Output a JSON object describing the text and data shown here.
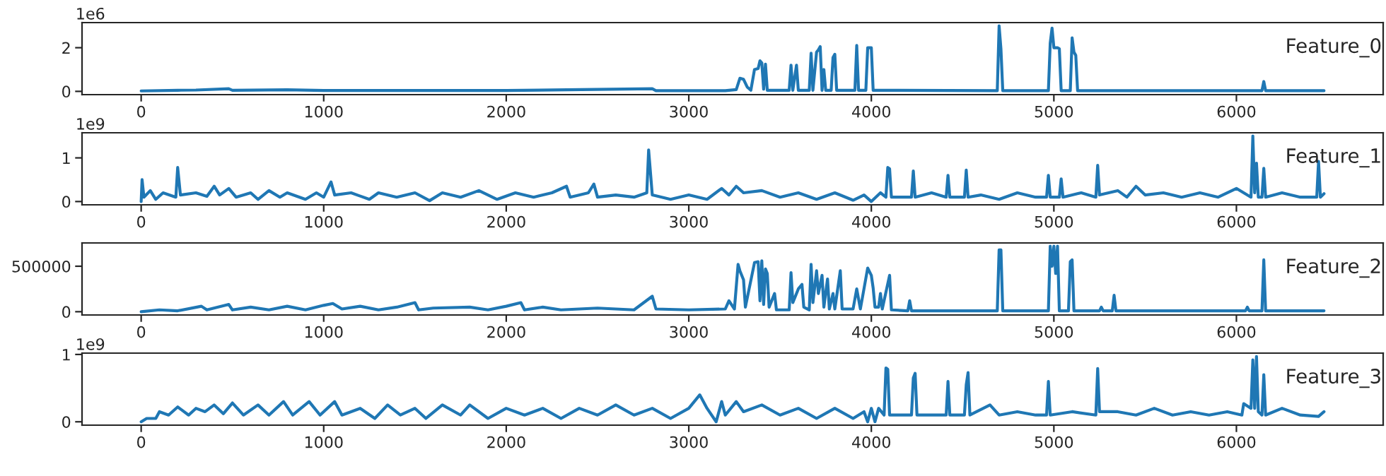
{
  "chart_data": [
    {
      "type": "line",
      "title": "Feature_0",
      "annotations": [
        "1e6"
      ],
      "xlim": [
        -324,
        6804
      ],
      "xticks": [
        0,
        1000,
        2000,
        3000,
        4000,
        5000,
        6000
      ],
      "ylim": [
        -0.15,
        3.15
      ],
      "yticks": [
        0,
        2
      ],
      "x": [
        0,
        200,
        300,
        480,
        500,
        800,
        1000,
        1500,
        2000,
        2800,
        2820,
        3200,
        3260,
        3280,
        3300,
        3320,
        3340,
        3360,
        3380,
        3390,
        3400,
        3410,
        3420,
        3430,
        3550,
        3560,
        3570,
        3590,
        3600,
        3660,
        3670,
        3680,
        3700,
        3710,
        3720,
        3730,
        3740,
        3750,
        3780,
        3790,
        3800,
        3810,
        3910,
        3920,
        3930,
        3970,
        3980,
        4000,
        4010,
        4690,
        4700,
        4710,
        4720,
        4970,
        4980,
        4990,
        5000,
        5020,
        5030,
        5040,
        5090,
        5100,
        5110,
        5120,
        5130,
        6140,
        6150,
        6160,
        6480
      ],
      "series": [
        {
          "color": "#1f77b4",
          "values": [
            0.02,
            0.05,
            0.06,
            0.12,
            0.05,
            0.07,
            0.04,
            0.04,
            0.04,
            0.12,
            0.03,
            0.03,
            0.08,
            0.6,
            0.55,
            0.2,
            0.05,
            1.0,
            1.05,
            1.4,
            1.3,
            0.1,
            1.25,
            0.05,
            0.05,
            1.2,
            0.05,
            1.2,
            0.05,
            0.05,
            1.75,
            0.05,
            1.8,
            1.9,
            2.05,
            0.05,
            1.0,
            0.05,
            0.05,
            1.55,
            1.7,
            0.05,
            0.05,
            2.1,
            0.05,
            0.05,
            2.0,
            2.0,
            0.05,
            0.03,
            3.0,
            1.95,
            0.03,
            0.03,
            2.2,
            2.9,
            2.0,
            2.0,
            1.95,
            0.03,
            0.03,
            2.45,
            1.8,
            1.65,
            0.03,
            0.03,
            0.45,
            0.03,
            0.03
          ]
        }
      ]
    },
    {
      "type": "line",
      "title": "Feature_1",
      "annotations": [
        "1e9"
      ],
      "xlim": [
        -324,
        6804
      ],
      "xticks": [
        0,
        1000,
        2000,
        3000,
        4000,
        5000,
        6000
      ],
      "ylim": [
        -0.075,
        1.575
      ],
      "yticks": [
        0,
        1
      ],
      "x": [
        0,
        5,
        15,
        50,
        80,
        120,
        190,
        200,
        215,
        300,
        360,
        400,
        430,
        480,
        520,
        600,
        640,
        700,
        760,
        800,
        900,
        960,
        1000,
        1040,
        1060,
        1150,
        1250,
        1300,
        1400,
        1500,
        1580,
        1650,
        1750,
        1850,
        1950,
        2050,
        2150,
        2250,
        2330,
        2350,
        2450,
        2480,
        2500,
        2600,
        2700,
        2770,
        2780,
        2800,
        2900,
        3000,
        3100,
        3180,
        3220,
        3260,
        3300,
        3400,
        3500,
        3600,
        3700,
        3800,
        3900,
        3960,
        4000,
        4050,
        4080,
        4090,
        4100,
        4110,
        4220,
        4230,
        4240,
        4330,
        4410,
        4420,
        4430,
        4510,
        4520,
        4530,
        4600,
        4700,
        4800,
        4900,
        4960,
        4970,
        4980,
        5030,
        5040,
        5050,
        5150,
        5230,
        5240,
        5250,
        5350,
        5400,
        5450,
        5500,
        5600,
        5700,
        5800,
        5900,
        6000,
        6080,
        6090,
        6100,
        6110,
        6120,
        6140,
        6150,
        6160,
        6250,
        6350,
        6440,
        6450,
        6460,
        6480
      ],
      "series": [
        {
          "color": "#1f77b4",
          "values": [
            0.0,
            0.5,
            0.1,
            0.25,
            0.05,
            0.2,
            0.1,
            0.78,
            0.15,
            0.2,
            0.12,
            0.35,
            0.15,
            0.3,
            0.1,
            0.2,
            0.05,
            0.25,
            0.1,
            0.2,
            0.05,
            0.2,
            0.1,
            0.45,
            0.15,
            0.2,
            0.05,
            0.2,
            0.1,
            0.2,
            0.02,
            0.2,
            0.1,
            0.25,
            0.05,
            0.2,
            0.1,
            0.2,
            0.35,
            0.1,
            0.2,
            0.4,
            0.1,
            0.15,
            0.1,
            0.2,
            1.18,
            0.15,
            0.05,
            0.15,
            0.05,
            0.3,
            0.15,
            0.35,
            0.2,
            0.25,
            0.1,
            0.2,
            0.05,
            0.2,
            0.03,
            0.15,
            0.0,
            0.2,
            0.1,
            0.78,
            0.75,
            0.1,
            0.1,
            0.7,
            0.1,
            0.2,
            0.1,
            0.6,
            0.1,
            0.1,
            0.72,
            0.1,
            0.15,
            0.05,
            0.2,
            0.1,
            0.1,
            0.6,
            0.1,
            0.1,
            0.52,
            0.1,
            0.2,
            0.1,
            0.83,
            0.15,
            0.25,
            0.1,
            0.35,
            0.15,
            0.2,
            0.1,
            0.2,
            0.1,
            0.3,
            0.1,
            1.5,
            0.2,
            0.88,
            0.1,
            0.1,
            0.76,
            0.1,
            0.2,
            0.1,
            0.1,
            0.92,
            0.1,
            0.18
          ]
        }
      ]
    },
    {
      "type": "line",
      "title": "Feature_2",
      "xlim": [
        -324,
        6804
      ],
      "xticks": [
        0,
        1000,
        2000,
        3000,
        4000,
        5000,
        6000
      ],
      "ylim": [
        -36000,
        756000
      ],
      "yticks": [
        0,
        500000
      ],
      "x": [
        0,
        100,
        200,
        330,
        360,
        480,
        500,
        600,
        700,
        800,
        900,
        1000,
        1050,
        1100,
        1200,
        1300,
        1400,
        1500,
        1520,
        1600,
        1800,
        1900,
        2000,
        2080,
        2100,
        2200,
        2300,
        2500,
        2700,
        2800,
        2820,
        3000,
        3200,
        3220,
        3250,
        3270,
        3280,
        3300,
        3310,
        3360,
        3380,
        3390,
        3400,
        3410,
        3420,
        3430,
        3440,
        3470,
        3480,
        3550,
        3560,
        3570,
        3600,
        3620,
        3630,
        3660,
        3670,
        3680,
        3700,
        3710,
        3730,
        3740,
        3760,
        3770,
        3790,
        3800,
        3830,
        3840,
        3900,
        3920,
        3940,
        3980,
        4000,
        4010,
        4020,
        4040,
        4050,
        4060,
        4100,
        4110,
        4200,
        4210,
        4220,
        4690,
        4700,
        4710,
        4720,
        4970,
        4980,
        4990,
        5000,
        5010,
        5020,
        5030,
        5080,
        5090,
        5100,
        5110,
        5250,
        5260,
        5270,
        5320,
        5330,
        5340,
        6050,
        6060,
        6070,
        6140,
        6150,
        6160,
        6480
      ],
      "series": [
        {
          "color": "#1f77b4",
          "values": [
            0,
            20000,
            10000,
            60000,
            20000,
            80000,
            20000,
            50000,
            20000,
            60000,
            20000,
            70000,
            90000,
            30000,
            60000,
            20000,
            50000,
            100000,
            20000,
            40000,
            50000,
            20000,
            60000,
            100000,
            20000,
            50000,
            20000,
            40000,
            20000,
            170000,
            30000,
            20000,
            30000,
            120000,
            30000,
            520000,
            450000,
            350000,
            50000,
            540000,
            550000,
            120000,
            560000,
            80000,
            470000,
            420000,
            50000,
            200000,
            20000,
            20000,
            430000,
            100000,
            250000,
            300000,
            50000,
            20000,
            520000,
            100000,
            450000,
            200000,
            400000,
            50000,
            360000,
            30000,
            200000,
            30000,
            450000,
            30000,
            30000,
            250000,
            30000,
            480000,
            400000,
            260000,
            50000,
            50000,
            200000,
            30000,
            400000,
            20000,
            10000,
            120000,
            10000,
            10000,
            680000,
            680000,
            10000,
            10000,
            720000,
            500000,
            720000,
            420000,
            720000,
            10000,
            10000,
            550000,
            570000,
            10000,
            10000,
            50000,
            10000,
            10000,
            180000,
            10000,
            10000,
            50000,
            10000,
            10000,
            570000,
            10000,
            10000
          ]
        }
      ]
    },
    {
      "type": "line",
      "title": "Feature_3",
      "annotations": [
        "1e9"
      ],
      "xlim": [
        -324,
        6804
      ],
      "xticks": [
        0,
        1000,
        2000,
        3000,
        4000,
        5000,
        6000
      ],
      "ylim": [
        -0.05,
        1.02
      ],
      "yticks": [
        0,
        1
      ],
      "x": [
        0,
        30,
        80,
        100,
        150,
        200,
        260,
        300,
        350,
        400,
        450,
        500,
        560,
        640,
        700,
        780,
        830,
        920,
        980,
        1060,
        1100,
        1200,
        1280,
        1350,
        1420,
        1500,
        1560,
        1650,
        1750,
        1800,
        1900,
        2000,
        2100,
        2200,
        2300,
        2400,
        2500,
        2600,
        2700,
        2800,
        2900,
        3000,
        3060,
        3100,
        3150,
        3180,
        3200,
        3260,
        3300,
        3400,
        3500,
        3600,
        3700,
        3800,
        3900,
        3960,
        3980,
        4000,
        4020,
        4040,
        4070,
        4080,
        4090,
        4100,
        4220,
        4230,
        4240,
        4250,
        4410,
        4420,
        4430,
        4510,
        4520,
        4530,
        4540,
        4650,
        4700,
        4800,
        4900,
        4960,
        4970,
        4980,
        5100,
        5230,
        5240,
        5250,
        5350,
        5450,
        5550,
        5650,
        5750,
        5850,
        5950,
        6030,
        6040,
        6080,
        6090,
        6100,
        6110,
        6120,
        6140,
        6150,
        6160,
        6250,
        6350,
        6450,
        6480
      ],
      "series": [
        {
          "color": "#1f77b4",
          "values": [
            0.0,
            0.05,
            0.05,
            0.15,
            0.1,
            0.22,
            0.1,
            0.2,
            0.15,
            0.25,
            0.12,
            0.28,
            0.1,
            0.25,
            0.1,
            0.3,
            0.1,
            0.3,
            0.1,
            0.3,
            0.1,
            0.2,
            0.05,
            0.25,
            0.1,
            0.2,
            0.05,
            0.25,
            0.1,
            0.25,
            0.05,
            0.2,
            0.1,
            0.2,
            0.05,
            0.2,
            0.1,
            0.25,
            0.1,
            0.2,
            0.05,
            0.2,
            0.4,
            0.2,
            0.0,
            0.3,
            0.1,
            0.3,
            0.15,
            0.25,
            0.1,
            0.2,
            0.05,
            0.2,
            0.05,
            0.15,
            0.0,
            0.2,
            0.0,
            0.2,
            0.1,
            0.8,
            0.78,
            0.1,
            0.1,
            0.65,
            0.72,
            0.1,
            0.1,
            0.6,
            0.1,
            0.1,
            0.55,
            0.73,
            0.1,
            0.25,
            0.1,
            0.15,
            0.1,
            0.1,
            0.6,
            0.1,
            0.15,
            0.1,
            0.79,
            0.15,
            0.15,
            0.1,
            0.2,
            0.1,
            0.15,
            0.1,
            0.15,
            0.1,
            0.27,
            0.2,
            0.92,
            0.2,
            0.97,
            0.15,
            0.1,
            0.7,
            0.1,
            0.2,
            0.1,
            0.08,
            0.15
          ]
        }
      ]
    }
  ]
}
